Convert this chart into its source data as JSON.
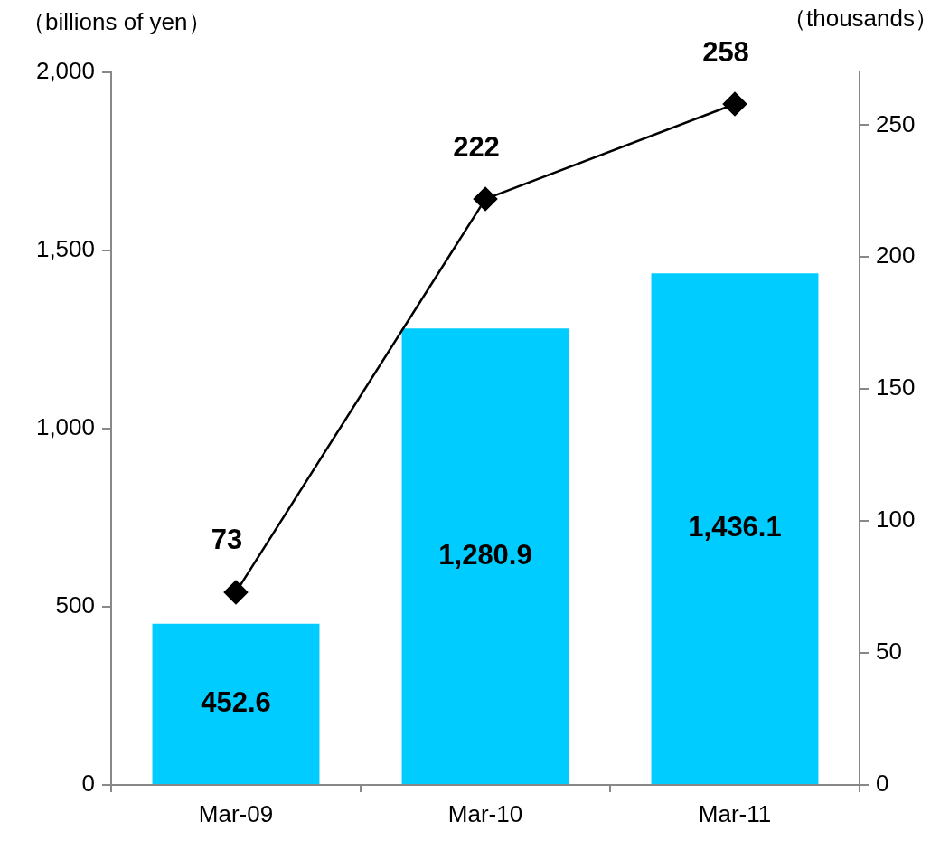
{
  "chart_data": {
    "type": "bar",
    "ylabel": "（billions of yen）",
    "y2label": "（thousands）",
    "categories": [
      "Mar-09",
      "Mar-10",
      "Mar-11"
    ],
    "series": [
      {
        "color": "#00ccff",
        "values": [
          452.6,
          1280.9,
          1436.1
        ],
        "value_labels": [
          "452.6",
          "1,280.9",
          "1,436.1"
        ]
      },
      {
        "type": "line",
        "axis": "y2",
        "color": "#000000",
        "values": [
          73,
          222,
          258
        ],
        "value_labels": [
          "73",
          "222",
          "258"
        ]
      }
    ],
    "marker": "diamond",
    "ylim": [
      0,
      2000
    ],
    "yticks": [
      0,
      500,
      {
        "value": 1000,
        "label": "1,000"
      },
      {
        "value": 1500,
        "label": "1,500"
      },
      {
        "value": 2000,
        "label": "2,000"
      }
    ],
    "y2lim": [
      0,
      270
    ],
    "y2ticks": [
      0,
      50,
      100,
      150,
      200,
      250
    ],
    "grid": false,
    "legend": false
  }
}
